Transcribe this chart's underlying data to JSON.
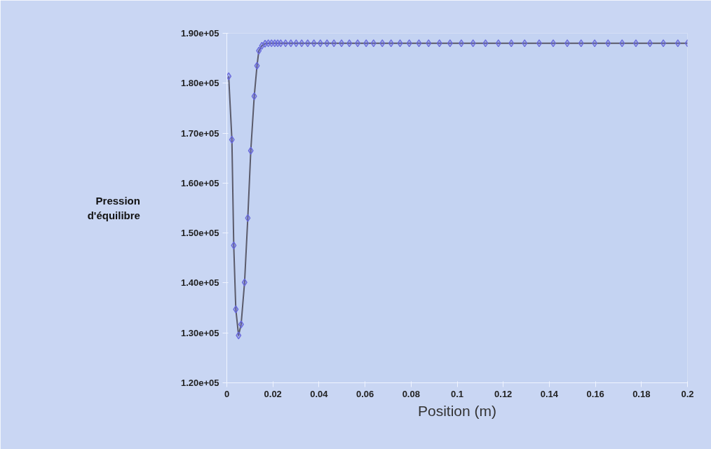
{
  "chart_data": {
    "type": "line",
    "xlabel": "Position (m)",
    "ylabel": "Pression d'équilibre",
    "xlim": [
      0,
      0.2
    ],
    "ylim": [
      120000,
      190000
    ],
    "xticks": [
      0,
      0.02,
      0.04,
      0.06,
      0.08,
      0.1,
      0.12,
      0.14,
      0.16,
      0.18,
      0.2
    ],
    "yticks": [
      {
        "value": 120000,
        "label": "1.20e+05"
      },
      {
        "value": 130000,
        "label": "1.30e+05"
      },
      {
        "value": 140000,
        "label": "1.40e+05"
      },
      {
        "value": 150000,
        "label": "1.50e+05"
      },
      {
        "value": 160000,
        "label": "1.60e+05"
      },
      {
        "value": 170000,
        "label": "1.70e+05"
      },
      {
        "value": 180000,
        "label": "1.80e+05"
      },
      {
        "value": 190000,
        "label": "1.90e+05"
      }
    ],
    "x": [
      0.0008,
      0.0022,
      0.003,
      0.0039,
      0.0051,
      0.0062,
      0.0077,
      0.0091,
      0.0104,
      0.0119,
      0.0131,
      0.0139,
      0.0152,
      0.0166,
      0.018,
      0.0194,
      0.0208,
      0.0221,
      0.0234,
      0.0255,
      0.0278,
      0.0301,
      0.0325,
      0.0351,
      0.0378,
      0.0406,
      0.0435,
      0.0465,
      0.0498,
      0.0532,
      0.0568,
      0.0605,
      0.0637,
      0.0675,
      0.0713,
      0.0752,
      0.0792,
      0.0834,
      0.0876,
      0.0923,
      0.0969,
      0.1018,
      0.1069,
      0.1123,
      0.1179,
      0.1235,
      0.1293,
      0.1356,
      0.1417,
      0.1478,
      0.1538,
      0.1597,
      0.1655,
      0.1716,
      0.1776,
      0.1837,
      0.1895,
      0.1958,
      0.2
    ],
    "series": [
      {
        "color": "#6868dc",
        "values": [
          181400,
          168700,
          147500,
          134700,
          129500,
          131700,
          140100,
          153000,
          166500,
          177400,
          183500,
          186500,
          187500,
          187900,
          188000,
          188000,
          188000,
          188000,
          188000,
          188000,
          188000,
          188000,
          188000,
          188000,
          188000,
          188000,
          188000,
          188000,
          188000,
          188000,
          188000,
          188000,
          188000,
          188000,
          188000,
          188000,
          188000,
          188000,
          188000,
          188000,
          188000,
          188000,
          188000,
          188000,
          188000,
          188000,
          188000,
          188000,
          188000,
          188000,
          188000,
          188000,
          188000,
          188000,
          188000,
          188000,
          188000,
          188000,
          188000
        ]
      }
    ],
    "marker": "diamond",
    "grid": false
  }
}
